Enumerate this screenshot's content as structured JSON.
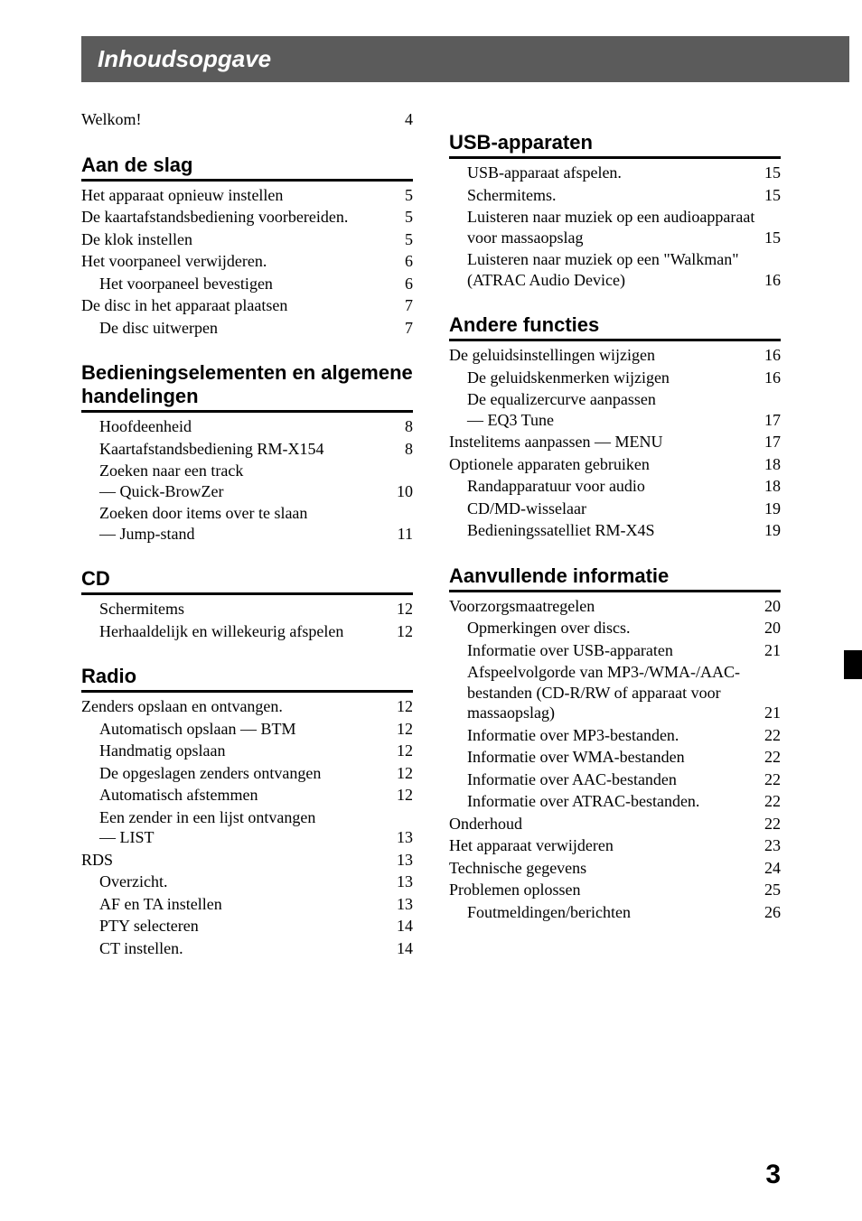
{
  "title": "Inhoudsopgave",
  "page_number": "3",
  "left": {
    "pre": [
      {
        "label": "Welkom!",
        "page": "4",
        "indent": 0
      }
    ],
    "sections": [
      {
        "heading": "Aan de slag",
        "items": [
          {
            "label": "Het apparaat opnieuw instellen",
            "page": "5",
            "indent": 0
          },
          {
            "label": "De kaartafstandsbediening voorbereiden.",
            "page": "5",
            "indent": 0
          },
          {
            "label": "De klok instellen",
            "page": "5",
            "indent": 0
          },
          {
            "label": "Het voorpaneel verwijderen.",
            "page": "6",
            "indent": 0
          },
          {
            "label": "Het voorpaneel bevestigen",
            "page": "6",
            "indent": 1
          },
          {
            "label": "De disc in het apparaat plaatsen",
            "page": "7",
            "indent": 0
          },
          {
            "label": "De disc uitwerpen",
            "page": "7",
            "indent": 1
          }
        ]
      },
      {
        "heading": "Bedieningselementen en algemene handelingen",
        "items": [
          {
            "label": "Hoofdeenheid",
            "page": "8",
            "indent": 1
          },
          {
            "label": "Kaartafstandsbediening RM-X154",
            "page": "8",
            "indent": 1
          },
          {
            "label": "Zoeken naar een track",
            "cont": "— Quick-BrowZer",
            "page": "10",
            "indent": 1,
            "wrap": true
          },
          {
            "label": "Zoeken door items over te slaan",
            "cont": "— Jump-stand",
            "page": "11",
            "indent": 1,
            "wrap": true
          }
        ]
      },
      {
        "heading": "CD",
        "items": [
          {
            "label": "Schermitems",
            "page": "12",
            "indent": 1
          },
          {
            "label": "Herhaaldelijk en willekeurig afspelen",
            "page": "12",
            "indent": 1
          }
        ]
      },
      {
        "heading": "Radio",
        "items": [
          {
            "label": "Zenders opslaan en ontvangen.",
            "page": "12",
            "indent": 0
          },
          {
            "label": "Automatisch opslaan — BTM",
            "page": "12",
            "indent": 1
          },
          {
            "label": "Handmatig opslaan",
            "page": "12",
            "indent": 1
          },
          {
            "label": "De opgeslagen zenders ontvangen",
            "page": "12",
            "indent": 1
          },
          {
            "label": "Automatisch afstemmen",
            "page": "12",
            "indent": 1
          },
          {
            "label": "Een zender in een lijst ontvangen",
            "cont": "— LIST",
            "page": "13",
            "indent": 1,
            "wrap": true
          },
          {
            "label": "RDS",
            "page": "13",
            "indent": 0
          },
          {
            "label": "Overzicht.",
            "page": "13",
            "indent": 1
          },
          {
            "label": "AF en TA instellen",
            "page": "13",
            "indent": 1
          },
          {
            "label": "PTY selecteren",
            "page": "14",
            "indent": 1
          },
          {
            "label": "CT instellen.",
            "page": "14",
            "indent": 1
          }
        ]
      }
    ]
  },
  "right": {
    "sections": [
      {
        "heading": "USB-apparaten",
        "items": [
          {
            "label": "USB-apparaat afspelen.",
            "page": "15",
            "indent": 1
          },
          {
            "label": "Schermitems.",
            "page": "15",
            "indent": 1
          },
          {
            "label": "Luisteren naar muziek op een audioapparaat",
            "cont": "voor massaopslag",
            "page": "15",
            "indent": 1,
            "wrap": true
          },
          {
            "label": "Luisteren naar muziek op een \"Walkman\"",
            "cont": "(ATRAC Audio Device)",
            "page": "16",
            "indent": 1,
            "wrap": true
          }
        ]
      },
      {
        "heading": "Andere functies",
        "items": [
          {
            "label": "De geluidsinstellingen wijzigen",
            "page": "16",
            "indent": 0
          },
          {
            "label": "De geluidskenmerken wijzigen",
            "page": "16",
            "indent": 1
          },
          {
            "label": "De equalizercurve aanpassen",
            "cont": "— EQ3 Tune",
            "page": "17",
            "indent": 1,
            "wrap": true
          },
          {
            "label": "Instelitems aanpassen — MENU",
            "page": "17",
            "indent": 0
          },
          {
            "label": "Optionele apparaten gebruiken",
            "page": "18",
            "indent": 0
          },
          {
            "label": "Randapparatuur voor audio",
            "page": "18",
            "indent": 1
          },
          {
            "label": "CD/MD-wisselaar",
            "page": "19",
            "indent": 1
          },
          {
            "label": "Bedieningssatelliet RM-X4S",
            "page": "19",
            "indent": 1
          }
        ]
      },
      {
        "heading": "Aanvullende informatie",
        "items": [
          {
            "label": "Voorzorgsmaatregelen",
            "page": "20",
            "indent": 0
          },
          {
            "label": "Opmerkingen over discs.",
            "page": "20",
            "indent": 1
          },
          {
            "label": "Informatie over USB-apparaten",
            "page": "21",
            "indent": 1
          },
          {
            "label": "Afspeelvolgorde van MP3-/WMA-/AAC-",
            "label2": "bestanden (CD-R/RW of apparaat voor",
            "cont": "massaopslag)",
            "page": "21",
            "indent": 1,
            "wrap3": true
          },
          {
            "label": "Informatie over MP3-bestanden.",
            "page": "22",
            "indent": 1
          },
          {
            "label": "Informatie over WMA-bestanden",
            "page": "22",
            "indent": 1
          },
          {
            "label": "Informatie over AAC-bestanden",
            "page": "22",
            "indent": 1
          },
          {
            "label": "Informatie over ATRAC-bestanden.",
            "page": "22",
            "indent": 1
          },
          {
            "label": "Onderhoud",
            "page": "22",
            "indent": 0
          },
          {
            "label": "Het apparaat verwijderen",
            "page": "23",
            "indent": 0
          },
          {
            "label": "Technische gegevens",
            "page": "24",
            "indent": 0
          },
          {
            "label": "Problemen oplossen",
            "page": "25",
            "indent": 0
          },
          {
            "label": "Foutmeldingen/berichten",
            "page": "26",
            "indent": 1
          }
        ]
      }
    ]
  }
}
